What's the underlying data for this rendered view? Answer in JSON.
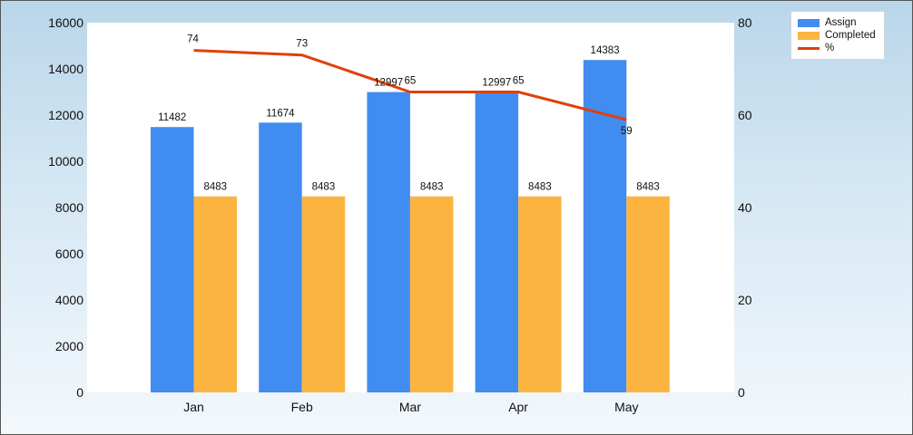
{
  "chart_data": {
    "type": "bar",
    "categories": [
      "Jan",
      "Feb",
      "Mar",
      "Apr",
      "May"
    ],
    "series": [
      {
        "name": "Assign",
        "type": "bar",
        "axis": "left",
        "color": "#418CF0",
        "values": [
          11482,
          11674,
          12997,
          12997,
          14383
        ]
      },
      {
        "name": "Completed",
        "type": "bar",
        "axis": "left",
        "color": "#FCB441",
        "values": [
          8483,
          8483,
          8483,
          8483,
          8483
        ]
      },
      {
        "name": "%",
        "type": "line",
        "axis": "right",
        "color": "#E0400A",
        "values": [
          74,
          73,
          65,
          65,
          59
        ]
      }
    ],
    "y_left": {
      "min": 0,
      "max": 16000,
      "ticks": [
        0,
        2000,
        4000,
        6000,
        8000,
        10000,
        12000,
        14000,
        16000
      ]
    },
    "y_right": {
      "min": 0,
      "max": 80,
      "ticks": [
        0,
        20,
        40,
        60,
        80
      ]
    },
    "grid": false,
    "legend_position": "top-right",
    "title": "",
    "xlabel": "",
    "ylabel": ""
  }
}
